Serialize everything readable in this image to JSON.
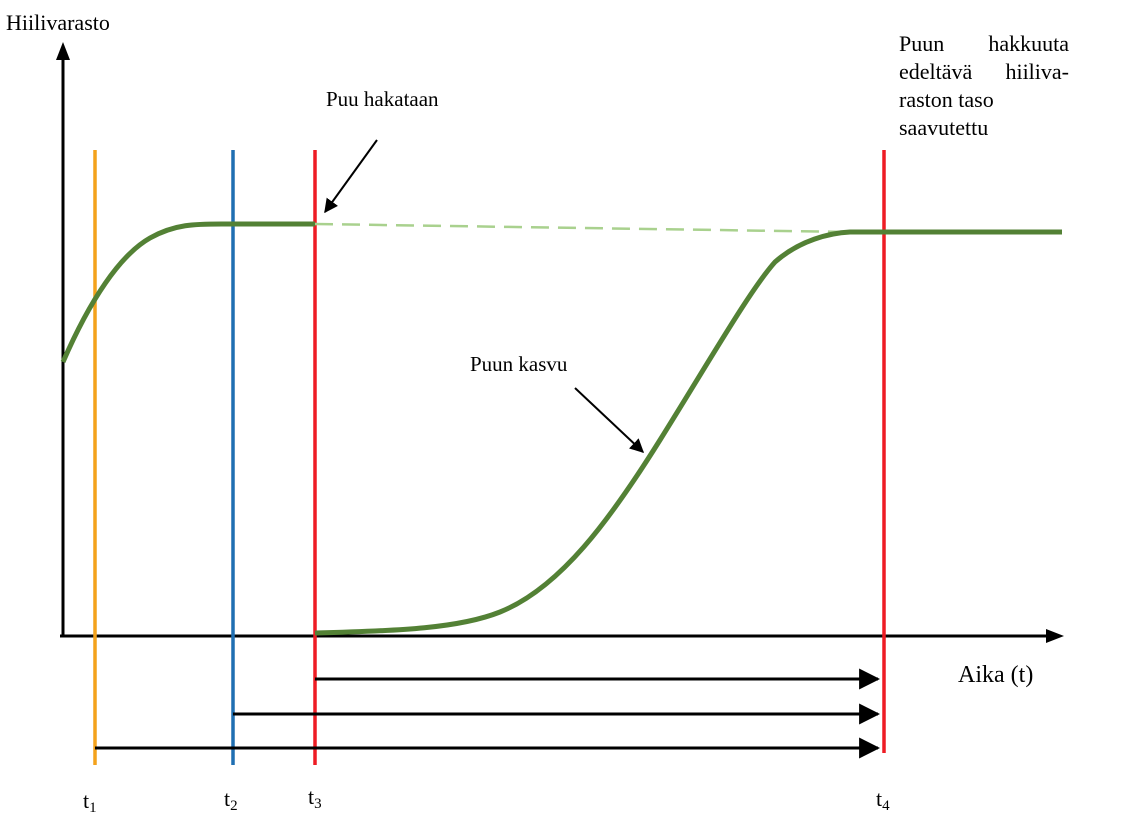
{
  "axis": {
    "y_label": "Hiilivarasto",
    "x_label": "Aika (t)"
  },
  "ticks": [
    {
      "base": "t",
      "sub": "1"
    },
    {
      "base": "t",
      "sub": "2"
    },
    {
      "base": "t",
      "sub": "3"
    },
    {
      "base": "t",
      "sub": "4"
    }
  ],
  "annotations": {
    "harvest": "Puu hakataan",
    "growth": "Puun kasvu",
    "restored": [
      "Puun hakkuuta",
      "edeltävä hiiliva-",
      "raston taso",
      "saavutettu"
    ]
  },
  "colors": {
    "curve": "#538135",
    "dashed": "#a9d18e",
    "t1": "#f4a21c",
    "t2": "#1f6fb2",
    "t3": "#ee1c24",
    "t4": "#ee1c24",
    "axis": "#000000"
  }
}
